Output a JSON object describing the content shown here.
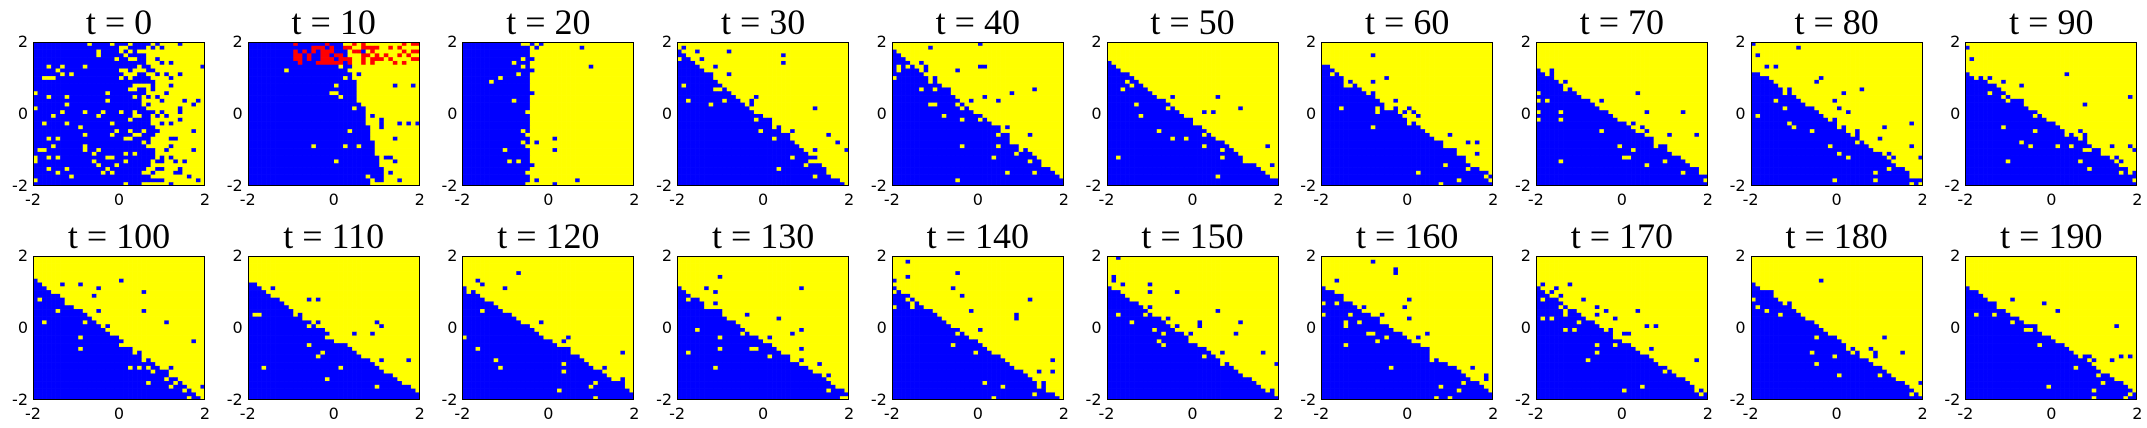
{
  "chart_data": {
    "type": "heatmap",
    "layout": {
      "rows": 2,
      "cols": 10
    },
    "x_range": [
      -2,
      2
    ],
    "y_range": [
      -2,
      2
    ],
    "x_ticks": [
      "-2",
      "0",
      "2"
    ],
    "y_ticks": [
      "-2",
      "0",
      "2"
    ],
    "colors": {
      "class_a": "#0000ff",
      "class_b": "#ffff00",
      "class_c": "#ff0000"
    },
    "grid": false,
    "panels": [
      {
        "title": "t = 0",
        "t": 0,
        "boundary": {
          "kind": "vertical",
          "x": 0.7
        },
        "noise": 0.3,
        "red": false
      },
      {
        "title": "t = 10",
        "t": 10,
        "boundary": {
          "kind": "curve",
          "x_top": 0.2,
          "x_bottom": 1.2
        },
        "noise": 0.12,
        "red": true
      },
      {
        "title": "t = 20",
        "t": 20,
        "boundary": {
          "kind": "vertical",
          "x": -0.4
        },
        "noise": 0.12,
        "red": false
      },
      {
        "title": "t = 30",
        "t": 30,
        "boundary": {
          "kind": "line",
          "slope": -0.95,
          "intercept": -0.1
        },
        "noise": 0.12,
        "red": false
      },
      {
        "title": "t = 40",
        "t": 40,
        "boundary": {
          "kind": "line",
          "slope": -0.9,
          "intercept": 0.0
        },
        "noise": 0.1,
        "red": false
      },
      {
        "title": "t = 50",
        "t": 50,
        "boundary": {
          "kind": "line",
          "slope": -0.85,
          "intercept": -0.2
        },
        "noise": 0.1,
        "red": false
      },
      {
        "title": "t = 60",
        "t": 60,
        "boundary": {
          "kind": "line",
          "slope": -0.8,
          "intercept": -0.15
        },
        "noise": 0.1,
        "red": false
      },
      {
        "title": "t = 70",
        "t": 70,
        "boundary": {
          "kind": "line",
          "slope": -0.75,
          "intercept": -0.2
        },
        "noise": 0.1,
        "red": false
      },
      {
        "title": "t = 80",
        "t": 80,
        "boundary": {
          "kind": "line",
          "slope": -0.8,
          "intercept": -0.3
        },
        "noise": 0.1,
        "red": false
      },
      {
        "title": "t = 90",
        "t": 90,
        "boundary": {
          "kind": "line",
          "slope": -0.75,
          "intercept": -0.2
        },
        "noise": 0.1,
        "red": false
      },
      {
        "title": "t = 100",
        "t": 100,
        "boundary": {
          "kind": "line",
          "slope": -0.85,
          "intercept": -0.3
        },
        "noise": 0.09,
        "red": false
      },
      {
        "title": "t = 110",
        "t": 110,
        "boundary": {
          "kind": "line",
          "slope": -0.8,
          "intercept": -0.25
        },
        "noise": 0.09,
        "red": false
      },
      {
        "title": "t = 120",
        "t": 120,
        "boundary": {
          "kind": "line",
          "slope": -0.75,
          "intercept": -0.3
        },
        "noise": 0.09,
        "red": false
      },
      {
        "title": "t = 130",
        "t": 130,
        "boundary": {
          "kind": "line",
          "slope": -0.75,
          "intercept": -0.35
        },
        "noise": 0.09,
        "red": false
      },
      {
        "title": "t = 140",
        "t": 140,
        "boundary": {
          "kind": "line",
          "slope": -0.8,
          "intercept": -0.4
        },
        "noise": 0.09,
        "red": false
      },
      {
        "title": "t = 150",
        "t": 150,
        "boundary": {
          "kind": "line",
          "slope": -0.8,
          "intercept": -0.35
        },
        "noise": 0.09,
        "red": false
      },
      {
        "title": "t = 160",
        "t": 160,
        "boundary": {
          "kind": "line",
          "slope": -0.75,
          "intercept": -0.3
        },
        "noise": 0.09,
        "red": false
      },
      {
        "title": "t = 170",
        "t": 170,
        "boundary": {
          "kind": "line",
          "slope": -0.75,
          "intercept": -0.35
        },
        "noise": 0.09,
        "red": false
      },
      {
        "title": "t = 180",
        "t": 180,
        "boundary": {
          "kind": "line",
          "slope": -0.8,
          "intercept": -0.3
        },
        "noise": 0.09,
        "red": false
      },
      {
        "title": "t = 190",
        "t": 190,
        "boundary": {
          "kind": "line",
          "slope": -0.75,
          "intercept": -0.3
        },
        "noise": 0.09,
        "red": false
      }
    ]
  }
}
